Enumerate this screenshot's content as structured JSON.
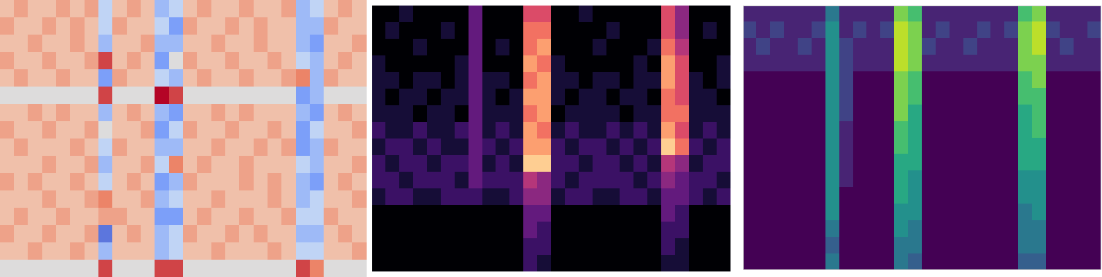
{
  "chart_data": [
    {
      "type": "heatmap",
      "color": "coolwarm",
      "tick_labels": false,
      "zlim": [
        0,
        10
      ],
      "cells": [
        [
          6,
          7,
          6,
          6,
          7,
          6,
          7,
          4,
          6,
          7,
          6,
          3,
          4,
          6,
          7,
          6,
          6,
          7,
          6,
          6,
          7,
          3,
          4,
          6,
          7,
          6
        ],
        [
          7,
          6,
          6,
          7,
          6,
          7,
          6,
          4,
          7,
          6,
          6,
          4,
          2,
          7,
          6,
          6,
          7,
          6,
          7,
          6,
          6,
          3,
          3,
          7,
          6,
          6
        ],
        [
          6,
          6,
          7,
          6,
          6,
          7,
          6,
          3,
          6,
          6,
          7,
          3,
          3,
          6,
          6,
          7,
          6,
          6,
          7,
          6,
          6,
          3,
          2,
          6,
          6,
          7
        ],
        [
          7,
          6,
          6,
          7,
          6,
          6,
          7,
          9,
          6,
          7,
          6,
          2,
          5,
          7,
          6,
          6,
          7,
          6,
          6,
          7,
          6,
          4,
          3,
          6,
          7,
          6
        ],
        [
          6,
          7,
          6,
          6,
          7,
          6,
          6,
          2,
          7,
          6,
          6,
          4,
          3,
          6,
          7,
          6,
          6,
          7,
          6,
          6,
          7,
          8,
          3,
          7,
          6,
          6
        ],
        [
          5,
          5,
          5,
          5,
          5,
          5,
          5,
          9,
          5,
          5,
          5,
          10,
          9,
          5,
          5,
          5,
          5,
          5,
          5,
          5,
          5,
          2,
          3,
          5,
          5,
          5
        ],
        [
          6,
          6,
          7,
          6,
          7,
          6,
          6,
          3,
          6,
          7,
          6,
          3,
          2,
          6,
          6,
          7,
          6,
          7,
          6,
          6,
          6,
          3,
          2,
          6,
          7,
          6
        ],
        [
          7,
          6,
          6,
          7,
          6,
          6,
          7,
          5,
          6,
          6,
          7,
          2,
          4,
          7,
          6,
          6,
          7,
          6,
          6,
          7,
          6,
          2,
          4,
          6,
          6,
          7
        ],
        [
          6,
          7,
          6,
          6,
          6,
          7,
          6,
          4,
          7,
          6,
          6,
          3,
          3,
          6,
          6,
          7,
          6,
          6,
          7,
          6,
          7,
          2,
          3,
          7,
          6,
          6
        ],
        [
          6,
          6,
          6,
          7,
          6,
          6,
          7,
          3,
          6,
          6,
          7,
          4,
          8,
          6,
          7,
          6,
          6,
          7,
          6,
          6,
          6,
          4,
          3,
          6,
          6,
          7
        ],
        [
          7,
          6,
          7,
          6,
          6,
          7,
          6,
          4,
          6,
          7,
          6,
          2,
          3,
          7,
          6,
          6,
          6,
          7,
          6,
          7,
          6,
          3,
          2,
          6,
          7,
          6
        ],
        [
          6,
          6,
          6,
          7,
          6,
          6,
          7,
          8,
          6,
          6,
          7,
          3,
          4,
          6,
          6,
          7,
          6,
          6,
          6,
          7,
          6,
          3,
          4,
          6,
          6,
          7
        ],
        [
          6,
          7,
          6,
          6,
          7,
          6,
          6,
          7,
          7,
          6,
          6,
          2,
          2,
          6,
          7,
          6,
          6,
          7,
          6,
          6,
          7,
          4,
          4,
          7,
          6,
          6
        ],
        [
          7,
          6,
          6,
          7,
          6,
          6,
          7,
          1,
          6,
          7,
          6,
          3,
          4,
          7,
          6,
          6,
          7,
          6,
          7,
          6,
          6,
          3,
          3,
          6,
          7,
          6
        ],
        [
          6,
          6,
          7,
          6,
          6,
          7,
          6,
          3,
          6,
          6,
          6,
          3,
          4,
          6,
          6,
          7,
          6,
          6,
          6,
          7,
          6,
          4,
          4,
          6,
          6,
          7
        ],
        [
          5,
          5,
          5,
          5,
          5,
          5,
          5,
          9,
          5,
          5,
          5,
          9,
          9,
          5,
          5,
          5,
          5,
          5,
          5,
          5,
          5,
          9,
          8,
          5,
          5,
          5
        ]
      ]
    },
    {
      "type": "heatmap",
      "color": "magma",
      "tick_labels": false,
      "zlim": [
        0,
        10
      ],
      "cells": [
        [
          0,
          0,
          1,
          0,
          0,
          0,
          0,
          3,
          0,
          0,
          0,
          6,
          6,
          0,
          0,
          1,
          0,
          0,
          0,
          0,
          0,
          6,
          4,
          0,
          0,
          0
        ],
        [
          0,
          1,
          0,
          0,
          0,
          1,
          0,
          3,
          0,
          0,
          0,
          7,
          7,
          0,
          0,
          0,
          0,
          1,
          0,
          0,
          0,
          6,
          4,
          0,
          1,
          0
        ],
        [
          0,
          0,
          0,
          1,
          0,
          0,
          0,
          3,
          0,
          1,
          0,
          7,
          8,
          0,
          0,
          0,
          1,
          0,
          0,
          0,
          1,
          7,
          5,
          0,
          0,
          0
        ],
        [
          1,
          0,
          0,
          0,
          0,
          0,
          1,
          3,
          0,
          0,
          0,
          8,
          7,
          1,
          0,
          0,
          0,
          0,
          0,
          1,
          0,
          8,
          6,
          0,
          0,
          1
        ],
        [
          1,
          1,
          0,
          1,
          1,
          0,
          1,
          3,
          1,
          1,
          0,
          7,
          8,
          1,
          1,
          0,
          1,
          1,
          0,
          1,
          1,
          8,
          6,
          1,
          0,
          1
        ],
        [
          1,
          0,
          1,
          1,
          0,
          1,
          1,
          3,
          1,
          0,
          1,
          8,
          8,
          1,
          0,
          1,
          1,
          0,
          1,
          1,
          0,
          7,
          6,
          1,
          1,
          0
        ],
        [
          1,
          1,
          1,
          0,
          1,
          1,
          0,
          3,
          1,
          1,
          1,
          7,
          8,
          0,
          1,
          1,
          1,
          1,
          0,
          1,
          1,
          7,
          7,
          1,
          1,
          1
        ],
        [
          2,
          1,
          1,
          2,
          1,
          1,
          2,
          3,
          1,
          2,
          1,
          8,
          7,
          1,
          2,
          1,
          1,
          2,
          1,
          2,
          1,
          8,
          6,
          1,
          2,
          1
        ],
        [
          1,
          2,
          2,
          1,
          2,
          1,
          1,
          3,
          2,
          1,
          2,
          8,
          8,
          2,
          1,
          2,
          2,
          1,
          2,
          1,
          2,
          9,
          7,
          2,
          1,
          2
        ],
        [
          2,
          1,
          2,
          2,
          1,
          2,
          2,
          3,
          1,
          2,
          1,
          9,
          9,
          2,
          2,
          1,
          2,
          2,
          1,
          2,
          1,
          5,
          4,
          1,
          2,
          2
        ],
        [
          2,
          2,
          1,
          2,
          2,
          2,
          1,
          3,
          2,
          2,
          2,
          5,
          4,
          2,
          1,
          2,
          2,
          2,
          2,
          1,
          2,
          4,
          3,
          2,
          2,
          1
        ],
        [
          1,
          2,
          2,
          1,
          1,
          2,
          2,
          2,
          1,
          1,
          2,
          4,
          4,
          1,
          2,
          2,
          1,
          1,
          2,
          2,
          1,
          3,
          3,
          2,
          1,
          2
        ],
        [
          0,
          0,
          0,
          0,
          0,
          0,
          0,
          0,
          0,
          0,
          0,
          3,
          3,
          0,
          0,
          0,
          0,
          0,
          0,
          0,
          0,
          3,
          2,
          0,
          0,
          0
        ],
        [
          0,
          0,
          0,
          0,
          0,
          0,
          0,
          0,
          0,
          0,
          0,
          3,
          2,
          0,
          0,
          0,
          0,
          0,
          0,
          0,
          0,
          2,
          2,
          0,
          0,
          0
        ],
        [
          0,
          0,
          0,
          0,
          0,
          0,
          0,
          0,
          0,
          0,
          0,
          2,
          2,
          0,
          0,
          0,
          0,
          0,
          0,
          0,
          0,
          2,
          1,
          0,
          0,
          0
        ],
        [
          0,
          0,
          0,
          0,
          0,
          0,
          0,
          0,
          0,
          0,
          0,
          2,
          1,
          0,
          0,
          0,
          0,
          0,
          0,
          0,
          0,
          1,
          1,
          0,
          0,
          0
        ]
      ]
    },
    {
      "type": "heatmap",
      "color": "viridis",
      "tick_labels": false,
      "zlim": [
        0,
        10
      ],
      "cells": [
        [
          1,
          1,
          1,
          1,
          1,
          1,
          4,
          1,
          1,
          1,
          1,
          8,
          7,
          1,
          1,
          1,
          1,
          1,
          1,
          1,
          7,
          8,
          1,
          1,
          1,
          1
        ],
        [
          2,
          1,
          2,
          1,
          1,
          2,
          5,
          1,
          2,
          1,
          2,
          9,
          8,
          1,
          2,
          1,
          1,
          2,
          1,
          2,
          8,
          9,
          2,
          1,
          1,
          2
        ],
        [
          1,
          2,
          1,
          1,
          2,
          1,
          5,
          2,
          1,
          1,
          1,
          9,
          8,
          2,
          1,
          1,
          2,
          1,
          1,
          1,
          8,
          9,
          1,
          2,
          1,
          1
        ],
        [
          1,
          1,
          1,
          1,
          1,
          1,
          5,
          2,
          1,
          1,
          1,
          9,
          8,
          1,
          1,
          1,
          1,
          1,
          1,
          1,
          8,
          8,
          1,
          1,
          1,
          1
        ],
        [
          0,
          0,
          0,
          0,
          0,
          0,
          5,
          2,
          0,
          0,
          0,
          8,
          7,
          0,
          0,
          0,
          0,
          0,
          0,
          0,
          7,
          8,
          0,
          0,
          0,
          0
        ],
        [
          0,
          0,
          0,
          0,
          0,
          0,
          5,
          2,
          0,
          0,
          0,
          8,
          7,
          0,
          0,
          0,
          0,
          0,
          0,
          0,
          7,
          7,
          0,
          0,
          0,
          0
        ],
        [
          0,
          0,
          0,
          0,
          0,
          0,
          5,
          2,
          0,
          0,
          0,
          8,
          6,
          0,
          0,
          0,
          0,
          0,
          0,
          0,
          6,
          7,
          0,
          0,
          0,
          0
        ],
        [
          0,
          0,
          0,
          0,
          0,
          0,
          5,
          1,
          0,
          0,
          0,
          7,
          6,
          0,
          0,
          0,
          0,
          0,
          0,
          0,
          6,
          7,
          0,
          0,
          0,
          0
        ],
        [
          0,
          0,
          0,
          0,
          0,
          0,
          5,
          1,
          0,
          0,
          0,
          7,
          6,
          0,
          0,
          0,
          0,
          0,
          0,
          0,
          6,
          6,
          0,
          0,
          0,
          0
        ],
        [
          0,
          0,
          0,
          0,
          0,
          0,
          5,
          1,
          0,
          0,
          0,
          6,
          6,
          0,
          0,
          0,
          0,
          0,
          0,
          0,
          6,
          6,
          0,
          0,
          0,
          0
        ],
        [
          0,
          0,
          0,
          0,
          0,
          0,
          5,
          1,
          0,
          0,
          0,
          6,
          5,
          0,
          0,
          0,
          0,
          0,
          0,
          0,
          5,
          5,
          0,
          0,
          0,
          0
        ],
        [
          0,
          0,
          0,
          0,
          0,
          0,
          5,
          0,
          0,
          0,
          0,
          6,
          5,
          0,
          0,
          0,
          0,
          0,
          0,
          0,
          5,
          5,
          0,
          0,
          0,
          0
        ],
        [
          0,
          0,
          0,
          0,
          0,
          0,
          5,
          0,
          0,
          0,
          0,
          5,
          5,
          0,
          0,
          0,
          0,
          0,
          0,
          0,
          4,
          5,
          0,
          0,
          0,
          0
        ],
        [
          0,
          0,
          0,
          0,
          0,
          0,
          4,
          0,
          0,
          0,
          0,
          5,
          4,
          0,
          0,
          0,
          0,
          0,
          0,
          0,
          4,
          4,
          0,
          0,
          0,
          0
        ],
        [
          0,
          0,
          0,
          0,
          0,
          0,
          3,
          0,
          0,
          0,
          0,
          4,
          4,
          0,
          0,
          0,
          0,
          0,
          0,
          0,
          4,
          4,
          0,
          0,
          0,
          0
        ],
        [
          0,
          0,
          0,
          0,
          0,
          0,
          4,
          0,
          0,
          0,
          0,
          4,
          3,
          0,
          0,
          0,
          0,
          0,
          0,
          0,
          3,
          3,
          0,
          0,
          0,
          0
        ]
      ]
    }
  ]
}
